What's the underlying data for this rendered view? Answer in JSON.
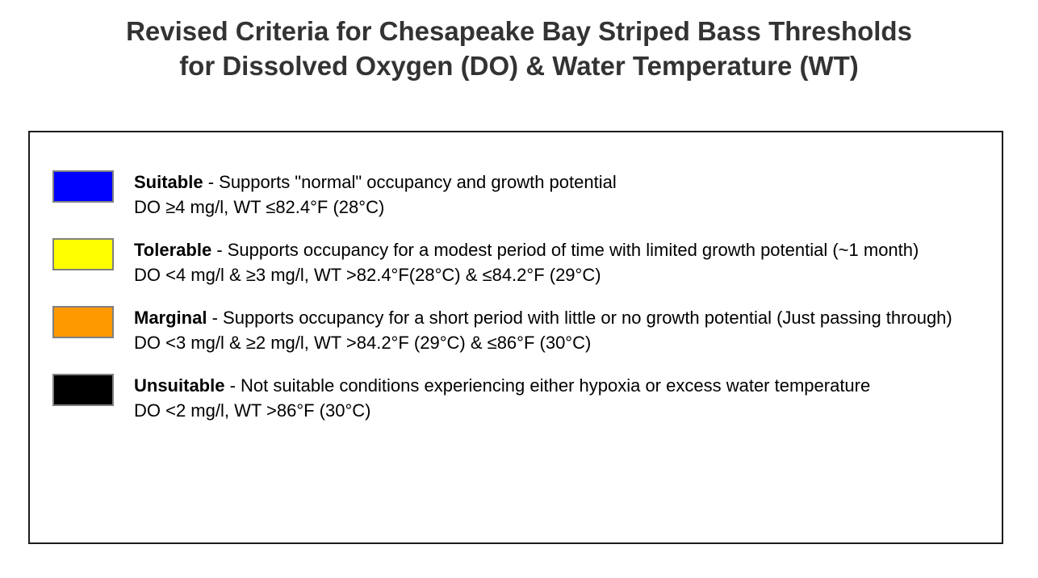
{
  "title": {
    "line1": "Revised Criteria for Chesapeake Bay Striped Bass Thresholds",
    "line2": "for Dissolved Oxygen (DO) & Water Temperature (WT)"
  },
  "legend": {
    "entries": [
      {
        "name": "Suitable",
        "color": "#0000ff",
        "description": "- Supports \"normal\" occupancy and growth potential",
        "criteria": "DO ≥4 mg/l, WT ≤82.4°F (28°C)"
      },
      {
        "name": "Tolerable",
        "color": "#ffff00",
        "description": "- Supports occupancy for a modest period of time with limited growth potential (~1 month)",
        "criteria": "DO <4 mg/l & ≥3 mg/l, WT >82.4°F(28°C) & ≤84.2°F (29°C)"
      },
      {
        "name": "Marginal",
        "color": "#ff9900",
        "description": "- Supports occupancy for a short period with little or no growth potential (Just passing through)",
        "criteria": "DO <3 mg/l & ≥2 mg/l, WT >84.2°F (29°C) & ≤86°F (30°C)"
      },
      {
        "name": "Unsuitable",
        "color": "#000000",
        "description": "- Not suitable conditions experiencing either hypoxia or excess water temperature",
        "criteria": "DO <2 mg/l, WT >86°F (30°C)"
      }
    ]
  }
}
